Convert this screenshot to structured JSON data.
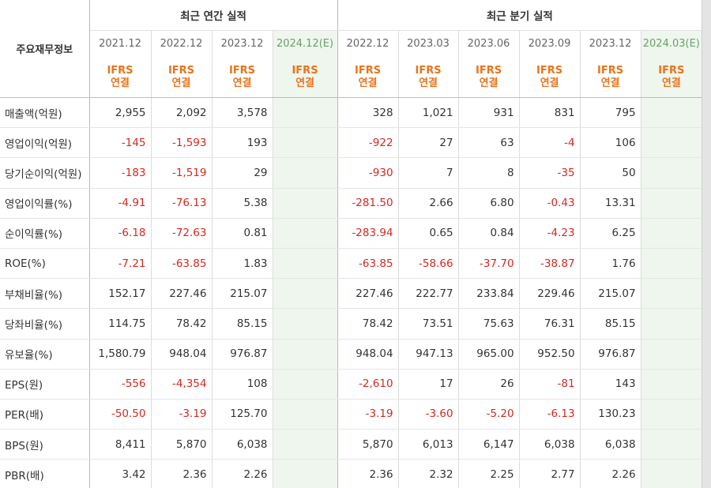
{
  "table": {
    "label_header": "주요재무정보",
    "annual_group": "최근 연간 실적",
    "quarter_group": "최근 분기 실적",
    "badge_line1": "IFRS",
    "badge_line2": "연결",
    "annual_periods": [
      "2021.12",
      "2022.12",
      "2023.12",
      "2024.12(E)"
    ],
    "quarter_periods": [
      "2022.12",
      "2023.03",
      "2023.06",
      "2023.09",
      "2023.12",
      "2024.03(E)"
    ],
    "rows": [
      {
        "label": "매출액(억원)",
        "values": [
          "2,955",
          "2,092",
          "3,578",
          "",
          "328",
          "1,021",
          "931",
          "831",
          "795",
          ""
        ]
      },
      {
        "label": "영업이익(억원)",
        "values": [
          "-145",
          "-1,593",
          "193",
          "",
          "-922",
          "27",
          "63",
          "-4",
          "106",
          ""
        ]
      },
      {
        "label": "당기순이익(억원)",
        "values": [
          "-183",
          "-1,519",
          "29",
          "",
          "-930",
          "7",
          "8",
          "-35",
          "50",
          ""
        ]
      },
      {
        "label": "영업이익률(%)",
        "values": [
          "-4.91",
          "-76.13",
          "5.38",
          "",
          "-281.50",
          "2.66",
          "6.80",
          "-0.43",
          "13.31",
          ""
        ]
      },
      {
        "label": "순이익률(%)",
        "values": [
          "-6.18",
          "-72.63",
          "0.81",
          "",
          "-283.94",
          "0.65",
          "0.84",
          "-4.23",
          "6.25",
          ""
        ]
      },
      {
        "label": "ROE(%)",
        "values": [
          "-7.21",
          "-63.85",
          "1.83",
          "",
          "-63.85",
          "-58.66",
          "-37.70",
          "-38.87",
          "1.76",
          ""
        ]
      },
      {
        "label": "부채비율(%)",
        "values": [
          "152.17",
          "227.46",
          "215.07",
          "",
          "227.46",
          "222.77",
          "233.84",
          "229.46",
          "215.07",
          ""
        ]
      },
      {
        "label": "당좌비율(%)",
        "values": [
          "114.75",
          "78.42",
          "85.15",
          "",
          "78.42",
          "73.51",
          "75.63",
          "76.31",
          "85.15",
          ""
        ]
      },
      {
        "label": "유보율(%)",
        "values": [
          "1,580.79",
          "948.04",
          "976.87",
          "",
          "948.04",
          "947.13",
          "965.00",
          "952.50",
          "976.87",
          ""
        ]
      },
      {
        "label": "EPS(원)",
        "values": [
          "-556",
          "-4,354",
          "108",
          "",
          "-2,610",
          "17",
          "26",
          "-81",
          "143",
          ""
        ]
      },
      {
        "label": "PER(배)",
        "values": [
          "-50.50",
          "-3.19",
          "125.70",
          "",
          "-3.19",
          "-3.60",
          "-5.20",
          "-6.13",
          "130.23",
          ""
        ]
      },
      {
        "label": "BPS(원)",
        "values": [
          "8,411",
          "5,870",
          "6,038",
          "",
          "5,870",
          "6,013",
          "6,147",
          "6,038",
          "6,038",
          ""
        ]
      },
      {
        "label": "PBR(배)",
        "values": [
          "3.42",
          "2.36",
          "2.26",
          "",
          "2.36",
          "2.32",
          "2.25",
          "2.77",
          "2.26",
          ""
        ]
      }
    ],
    "colors": {
      "negative": "#d6281f",
      "badge": "#e8741b",
      "estimate_bg": "#eef6ee"
    }
  }
}
